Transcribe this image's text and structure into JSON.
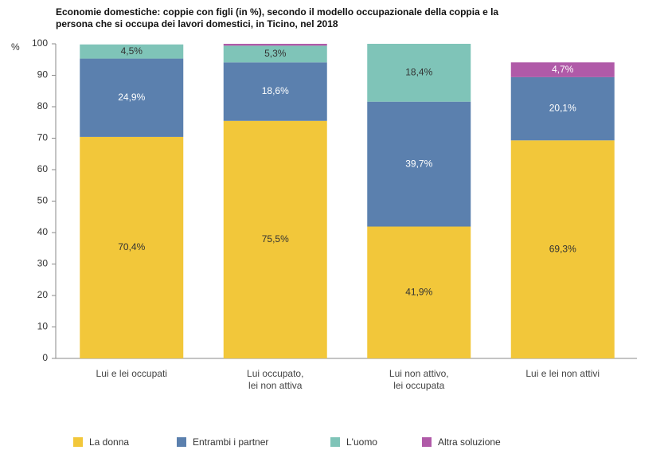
{
  "chart_data": {
    "type": "stacked_bar",
    "title": "Economie domestiche: coppie con figli (in %), secondo il modello occupazionale della coppia e la persona che si occupa dei lavori domestici, in Ticino, nel 2018",
    "y_unit": "%",
    "categories": [
      "Lui e lei occupati",
      "Lui occupato,\nlei non attiva",
      "Lui non attivo,\nlei occupata",
      "Lui e lei non attivi"
    ],
    "series": [
      {
        "name": "La donna",
        "color": "#f2c73a",
        "values": [
          70.4,
          75.5,
          41.9,
          69.3
        ],
        "value_labels": [
          "70,4%",
          "75,5%",
          "41,9%",
          "69,3%"
        ]
      },
      {
        "name": "Entrambi i partner",
        "color": "#5b80ae",
        "values": [
          24.9,
          18.6,
          39.7,
          20.1
        ],
        "value_labels": [
          "24,9%",
          "18,6%",
          "39,7%",
          "20,1%"
        ]
      },
      {
        "name": "L'uomo",
        "color": "#7fc4b8",
        "values": [
          4.5,
          5.3,
          18.4,
          null
        ],
        "value_labels": [
          "4,5%",
          "5,3%",
          "18,4%",
          null
        ]
      },
      {
        "name": "Altra soluzione",
        "color": "#b05aa8",
        "values": [
          null,
          0.6,
          null,
          4.7
        ],
        "value_labels": [
          null,
          null,
          null,
          "4,7%"
        ]
      }
    ],
    "ylim": [
      0,
      100
    ],
    "yticks": [
      0,
      10,
      20,
      30,
      40,
      50,
      60,
      70,
      80,
      90,
      100
    ],
    "grid": false,
    "legend": "bottom"
  }
}
